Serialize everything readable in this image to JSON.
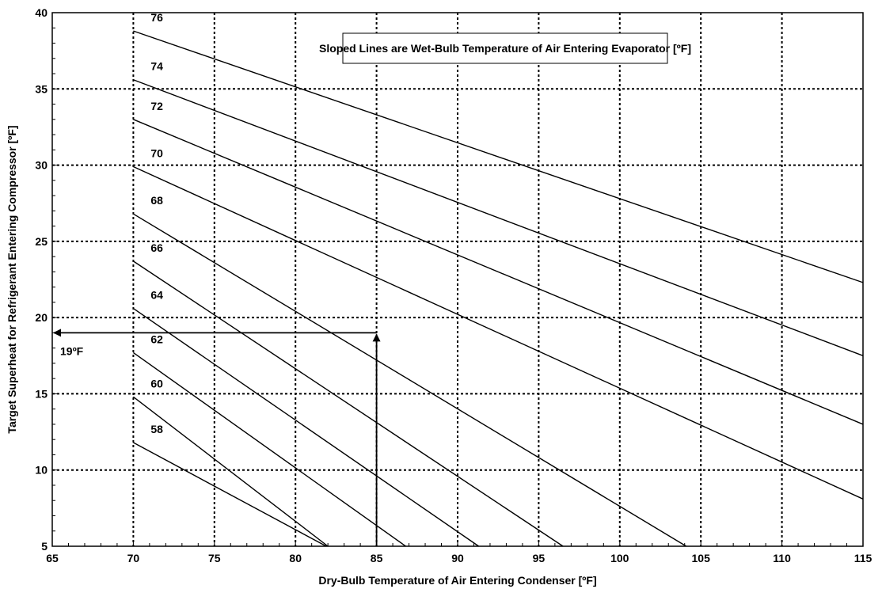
{
  "chart_data": {
    "type": "line",
    "title": "",
    "xlabel": "Dry-Bulb Temperature of Air Entering Condenser [ºF]",
    "ylabel": "Target Superheat for Refrigerant Entering Compressor [ºF]",
    "xlim": [
      65,
      115
    ],
    "ylim": [
      5,
      40
    ],
    "x_ticks": [
      65,
      70,
      75,
      80,
      85,
      90,
      95,
      100,
      105,
      110,
      115
    ],
    "y_ticks": [
      5,
      10,
      15,
      20,
      25,
      30,
      35,
      40
    ],
    "grid": true,
    "note": "Sloped Lines are Wet-Bulb Temperature of Air Entering Evaporator [ºF]",
    "series": [
      {
        "name": "76",
        "points": [
          [
            70,
            38.8
          ],
          [
            115,
            22.3
          ]
        ]
      },
      {
        "name": "74",
        "points": [
          [
            70,
            35.6
          ],
          [
            115,
            17.5
          ]
        ]
      },
      {
        "name": "72",
        "points": [
          [
            70,
            33.0
          ],
          [
            115,
            13.0
          ]
        ]
      },
      {
        "name": "70",
        "points": [
          [
            70,
            29.9
          ],
          [
            115,
            8.1
          ]
        ]
      },
      {
        "name": "68",
        "points": [
          [
            70,
            26.8
          ],
          [
            104.1,
            5.0
          ]
        ]
      },
      {
        "name": "66",
        "points": [
          [
            70,
            23.7
          ],
          [
            96.5,
            5.0
          ]
        ]
      },
      {
        "name": "64",
        "points": [
          [
            70,
            20.6
          ],
          [
            91.3,
            5.0
          ]
        ]
      },
      {
        "name": "62",
        "points": [
          [
            70,
            17.7
          ],
          [
            86.8,
            5.0
          ]
        ]
      },
      {
        "name": "60",
        "points": [
          [
            70,
            14.8
          ],
          [
            82.0,
            5.0
          ]
        ]
      },
      {
        "name": "58",
        "points": [
          [
            70,
            11.8
          ],
          [
            81.9,
            5.0
          ]
        ]
      }
    ],
    "annotation": {
      "label": "19ºF",
      "x": 85,
      "y": 19
    }
  },
  "colors": {
    "line": "#000000",
    "grid": "#000000",
    "background": "#ffffff"
  }
}
